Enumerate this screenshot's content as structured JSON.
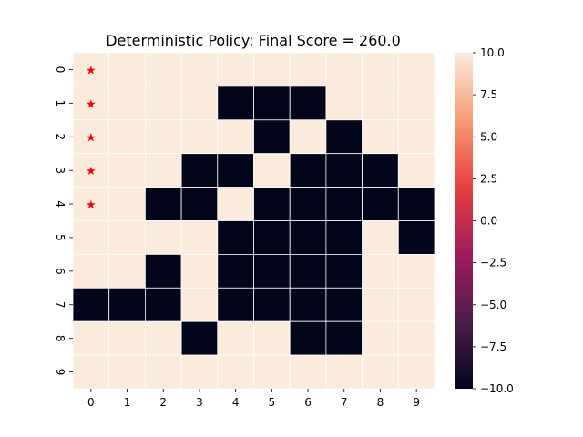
{
  "chart_data": {
    "type": "heatmap",
    "title": "Deterministic Policy: Final Score = 260.0",
    "xlabel": "",
    "ylabel": "",
    "x_ticks": [
      "0",
      "1",
      "2",
      "3",
      "4",
      "5",
      "6",
      "7",
      "8",
      "9"
    ],
    "y_ticks": [
      "0",
      "1",
      "2",
      "3",
      "4",
      "5",
      "6",
      "7",
      "8",
      "9"
    ],
    "values": [
      [
        10,
        10,
        10,
        10,
        10,
        10,
        10,
        10,
        10,
        10
      ],
      [
        10,
        10,
        10,
        10,
        -10,
        -10,
        -10,
        10,
        10,
        10
      ],
      [
        10,
        10,
        10,
        10,
        10,
        -10,
        10,
        -10,
        10,
        10
      ],
      [
        10,
        10,
        10,
        -10,
        -10,
        10,
        -10,
        -10,
        -10,
        10
      ],
      [
        10,
        10,
        -10,
        -10,
        10,
        -10,
        -10,
        -10,
        -10,
        -10
      ],
      [
        10,
        10,
        10,
        10,
        -10,
        -10,
        -10,
        -10,
        10,
        -10
      ],
      [
        10,
        10,
        -10,
        10,
        -10,
        -10,
        -10,
        -10,
        10,
        10
      ],
      [
        -10,
        -10,
        -10,
        10,
        -10,
        -10,
        -10,
        -10,
        10,
        10
      ],
      [
        10,
        10,
        10,
        -10,
        10,
        10,
        -10,
        -10,
        10,
        10
      ],
      [
        10,
        10,
        10,
        10,
        10,
        10,
        10,
        10,
        10,
        10
      ]
    ],
    "markers": {
      "symbol": "★",
      "color": "#ff0000",
      "cells": [
        [
          0,
          0
        ],
        [
          1,
          0
        ],
        [
          2,
          0
        ],
        [
          3,
          0
        ],
        [
          4,
          0
        ]
      ]
    },
    "colorbar": {
      "range": [
        -10,
        10
      ],
      "ticks": [
        10.0,
        7.5,
        5.0,
        2.5,
        0.0,
        -2.5,
        -5.0,
        -7.5,
        -10.0
      ],
      "tick_labels": [
        "10.0",
        "7.5",
        "5.0",
        "2.5",
        "0.0",
        "−2.5",
        "−5.0",
        "−7.5",
        "−10.0"
      ],
      "colors": [
        "#03051a",
        "#4c1d4b",
        "#a11a5b",
        "#e83f3f",
        "#f69c73",
        "#faebdd"
      ]
    },
    "grid": false,
    "cell_separator_color": "#ffffff"
  }
}
